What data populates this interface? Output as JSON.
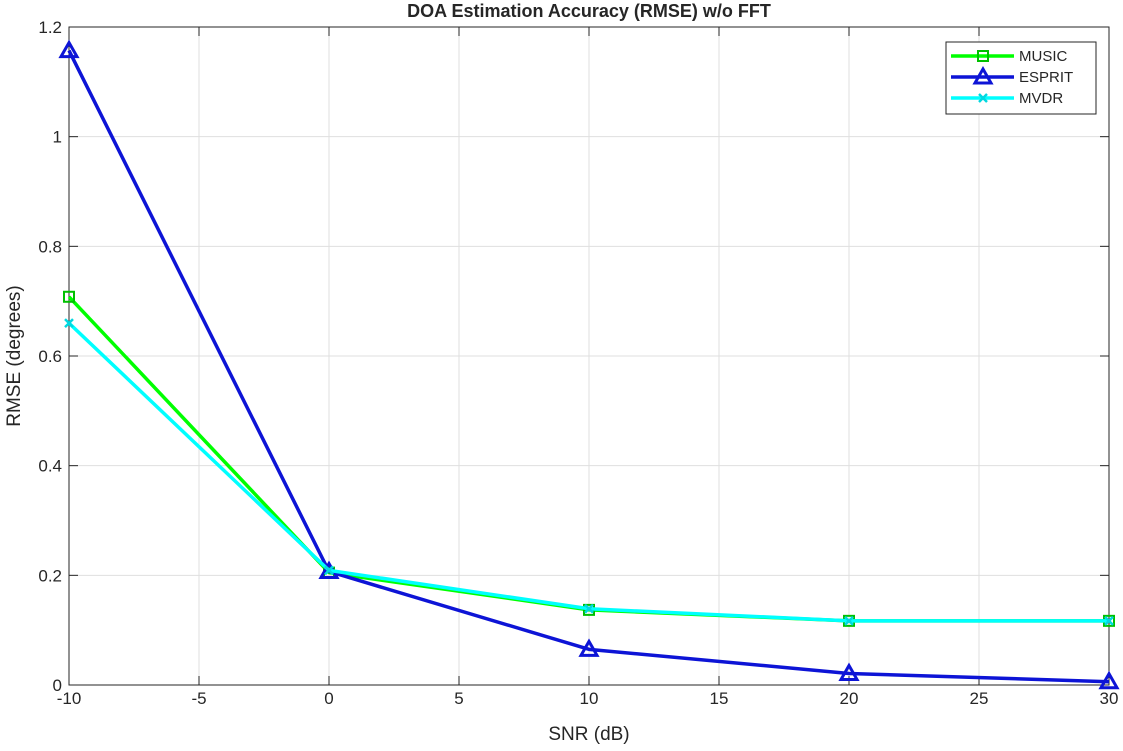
{
  "chart_data": {
    "type": "line",
    "title": "DOA Estimation Accuracy (RMSE) w/o FFT",
    "xlabel": "SNR (dB)",
    "ylabel": "RMSE (degrees)",
    "xlim": [
      -10,
      30
    ],
    "ylim": [
      0,
      1.2
    ],
    "xticks": [
      -10,
      -5,
      0,
      5,
      10,
      15,
      20,
      25,
      30
    ],
    "xtick_labels": [
      "-10",
      "-5",
      "0",
      "5",
      "10",
      "15",
      "20",
      "25",
      "30"
    ],
    "yticks": [
      0,
      0.2,
      0.4,
      0.6,
      0.8,
      1.0,
      1.2
    ],
    "ytick_labels": [
      "0",
      "0.2",
      "0.4",
      "0.6",
      "0.8",
      "1",
      "1.2"
    ],
    "grid": true,
    "legend_position": "top-right",
    "x": [
      -10,
      0,
      10,
      20,
      30
    ],
    "series": [
      {
        "name": "MUSIC",
        "color": "#00ff00",
        "edge_color": "#00c000",
        "marker": "square",
        "values": [
          0.708,
          0.205,
          0.137,
          0.117,
          0.117
        ]
      },
      {
        "name": "ESPRIT",
        "color": "#0d14d6",
        "edge_color": "#0d14d6",
        "marker": "triangle",
        "values": [
          1.157,
          0.207,
          0.065,
          0.021,
          0.006
        ]
      },
      {
        "name": "MVDR",
        "color": "#00ffff",
        "edge_color": "#00d8e0",
        "marker": "x",
        "values": [
          0.66,
          0.209,
          0.139,
          0.117,
          0.117
        ]
      }
    ]
  }
}
